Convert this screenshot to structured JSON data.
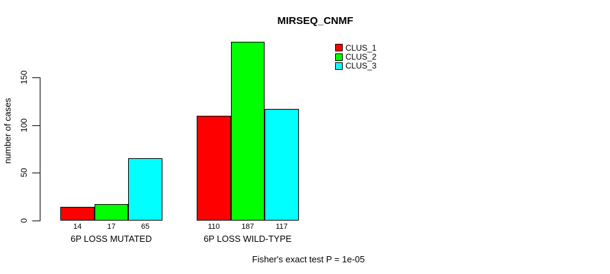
{
  "title": "MIRSEQ_CNMF",
  "caption": "Fisher's exact test P = 1e-05",
  "chart_data": {
    "type": "bar",
    "title": "MIRSEQ_CNMF",
    "xlabel": "",
    "ylabel": "number of cases",
    "categories": [
      "6P LOSS MUTATED",
      "6P LOSS WILD-TYPE"
    ],
    "series": [
      {
        "name": "CLUS_1",
        "color": "#ff0000",
        "values": [
          14,
          110
        ]
      },
      {
        "name": "CLUS_2",
        "color": "#00ff00",
        "values": [
          17,
          187
        ]
      },
      {
        "name": "CLUS_3",
        "color": "#00ffff",
        "values": [
          65,
          117
        ]
      }
    ],
    "bar_value_labels": [
      [
        "14",
        "17",
        "65"
      ],
      [
        "110",
        "187",
        "117"
      ]
    ],
    "yticks": [
      0,
      50,
      100,
      150
    ],
    "ylim": [
      0,
      190
    ],
    "grid": false,
    "legend_position": "top-right",
    "annotation": "Fisher's exact test P = 1e-05",
    "bar_border_color": "#000000",
    "background_color": "#ffffff"
  }
}
